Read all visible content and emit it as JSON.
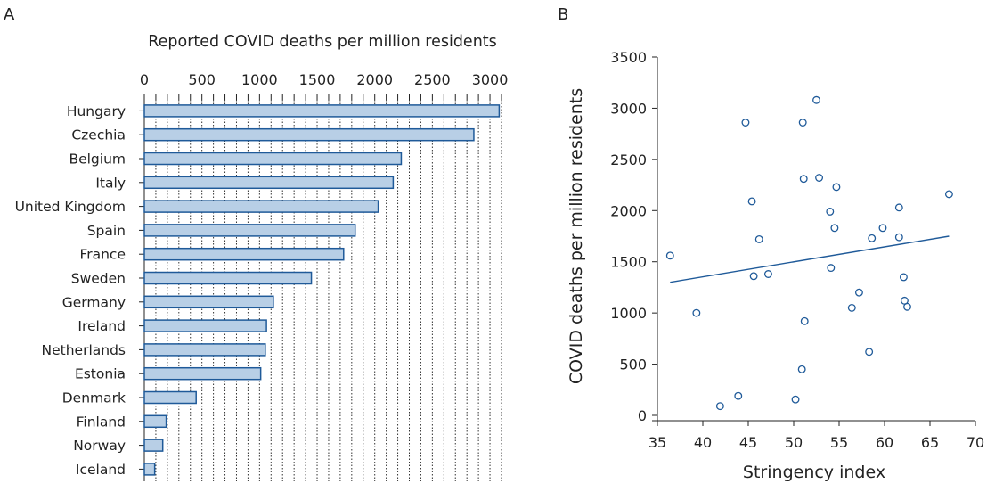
{
  "panel_a_label": "A",
  "panel_b_label": "B",
  "colors": {
    "bar_fill": "#b8cfe6",
    "bar_stroke": "#1f5a99",
    "point": "#1f5a99",
    "line": "#1f5a99",
    "axis": "#222222",
    "grid": "#333333"
  },
  "chart_data": [
    {
      "type": "bar",
      "orientation": "horizontal",
      "title": "Reported COVID deaths per million residents",
      "x_ticks": [
        "0",
        "500",
        "1000",
        "1500",
        "2000",
        "2500",
        "3000"
      ],
      "xlim": [
        0,
        3100
      ],
      "grid": "vertical dotted lines every 100",
      "categories": [
        "Hungary",
        "Czechia",
        "Belgium",
        "Italy",
        "United Kingdom",
        "Spain",
        "France",
        "Sweden",
        "Germany",
        "Ireland",
        "Netherlands",
        "Estonia",
        "Denmark",
        "Finland",
        "Norway",
        "Iceland"
      ],
      "values": [
        3080,
        2860,
        2230,
        2160,
        2030,
        1830,
        1730,
        1450,
        1120,
        1060,
        1050,
        1010,
        450,
        190,
        160,
        90
      ]
    },
    {
      "type": "scatter",
      "xlabel": "Stringency index",
      "ylabel": "COVID deaths per million residents",
      "x_ticks": [
        "35",
        "40",
        "45",
        "50",
        "55",
        "60",
        "65",
        "70"
      ],
      "y_ticks": [
        "0",
        "500",
        "1000",
        "1500",
        "2000",
        "2500",
        "3000",
        "3500"
      ],
      "xlim": [
        35,
        70
      ],
      "ylim": [
        0,
        3500
      ],
      "points": [
        {
          "x": 36.4,
          "y": 1560
        },
        {
          "x": 39.3,
          "y": 1000
        },
        {
          "x": 41.9,
          "y": 90
        },
        {
          "x": 43.9,
          "y": 190
        },
        {
          "x": 44.7,
          "y": 2860
        },
        {
          "x": 45.4,
          "y": 2090
        },
        {
          "x": 45.6,
          "y": 1360
        },
        {
          "x": 46.2,
          "y": 1720
        },
        {
          "x": 47.2,
          "y": 1380
        },
        {
          "x": 50.2,
          "y": 155
        },
        {
          "x": 50.9,
          "y": 450
        },
        {
          "x": 51.0,
          "y": 2860
        },
        {
          "x": 51.1,
          "y": 2310
        },
        {
          "x": 51.2,
          "y": 920
        },
        {
          "x": 52.5,
          "y": 3080
        },
        {
          "x": 52.8,
          "y": 2320
        },
        {
          "x": 54.0,
          "y": 1990
        },
        {
          "x": 54.1,
          "y": 1440
        },
        {
          "x": 54.5,
          "y": 1830
        },
        {
          "x": 54.7,
          "y": 2230
        },
        {
          "x": 56.4,
          "y": 1050
        },
        {
          "x": 57.2,
          "y": 1200
        },
        {
          "x": 58.3,
          "y": 620
        },
        {
          "x": 58.6,
          "y": 1730
        },
        {
          "x": 59.8,
          "y": 1830
        },
        {
          "x": 61.6,
          "y": 2030
        },
        {
          "x": 61.6,
          "y": 1740
        },
        {
          "x": 62.1,
          "y": 1350
        },
        {
          "x": 62.2,
          "y": 1120
        },
        {
          "x": 62.5,
          "y": 1060
        },
        {
          "x": 67.1,
          "y": 2160
        }
      ],
      "trend_line": {
        "x": [
          36.4,
          67.1
        ],
        "y": [
          1300,
          1750
        ]
      }
    }
  ]
}
